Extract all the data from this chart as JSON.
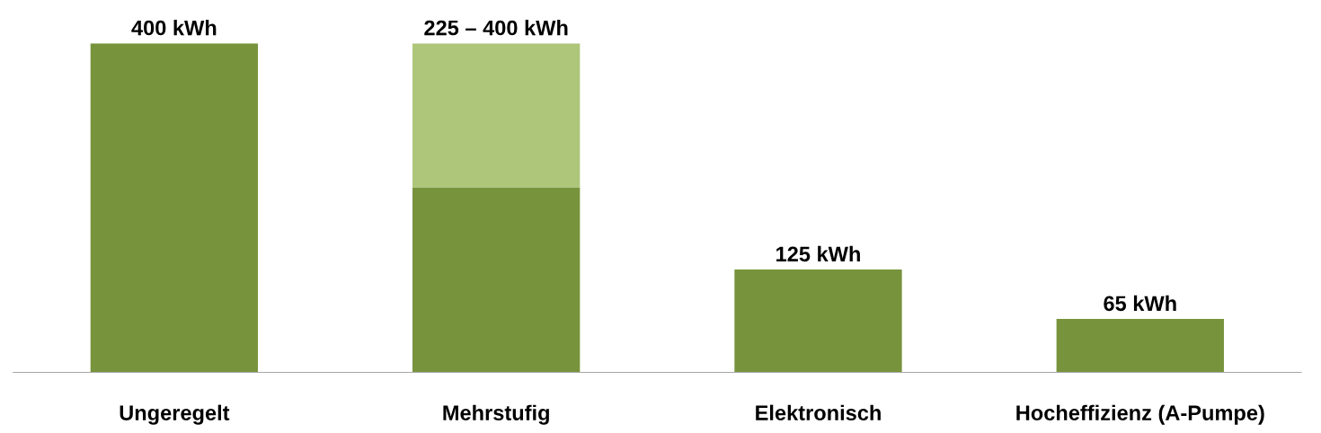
{
  "chart_data": {
    "type": "bar",
    "stacked": true,
    "categories": [
      "Ungeregelt",
      "Mehrstufig",
      "Elektronisch",
      "Hocheffizienz (A-Pumpe)"
    ],
    "series": [
      {
        "color": "#77933c",
        "values": [
          400,
          225,
          125,
          65
        ],
        "value_labels": [
          "400 kWh",
          null,
          "125 kWh",
          "65 kWh"
        ]
      },
      {
        "color": "#adc67a",
        "values": [
          null,
          175,
          null,
          null
        ]
      }
    ],
    "totals": [
      null,
      "225 – 400 kWh",
      null,
      null
    ],
    "tick_labels": "x",
    "grid": false,
    "legend": false
  }
}
